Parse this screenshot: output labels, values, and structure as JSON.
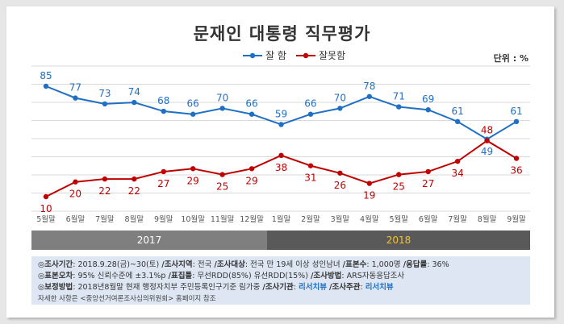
{
  "chart_data": {
    "type": "line",
    "title": "문재인 대통령 직무평가",
    "unit": "단위 : %",
    "categories": [
      "5월말",
      "6월말",
      "7월말",
      "8월말",
      "9월말",
      "10월말",
      "11월말",
      "12월말",
      "1월말",
      "2월말",
      "3월말",
      "4월말",
      "5월말",
      "6월말",
      "7월말",
      "8월말",
      "9월말"
    ],
    "series": [
      {
        "name": "잘 함",
        "color": "#1f6fc5",
        "values": [
          85,
          77,
          73,
          74,
          68,
          66,
          70,
          66,
          59,
          66,
          70,
          78,
          71,
          69,
          61,
          49,
          61
        ]
      },
      {
        "name": "잘못함",
        "color": "#c00000",
        "values": [
          10,
          20,
          22,
          22,
          27,
          29,
          25,
          29,
          38,
          31,
          26,
          19,
          25,
          27,
          34,
          48,
          36
        ]
      }
    ],
    "years": [
      {
        "label": "2017",
        "color": "#7f7f7f",
        "text_color": "#ffffff"
      },
      {
        "label": "2018",
        "color": "#595959",
        "text_color": "#f5c12e"
      }
    ],
    "ylim": [
      0,
      100
    ],
    "grid": true
  },
  "notes": {
    "line1": {
      "k1": "◎조사기간",
      "v1": ": 2018.9.28(금)~30(토)",
      "k2": "/조사지역",
      "v2": ": 전국",
      "k3": "/조사대상",
      "v3": ": 전국 만 19세 이상 성인남녀",
      "k4": "/표본수",
      "v4": ": 1,000명",
      "k5": "/응답률",
      "v5": ": 36%"
    },
    "line2": {
      "k1": "◎표본오차",
      "v1": ": 95% 신뢰수준에 ±3.1%p",
      "k2": "/표집틀",
      "v2": ": 무선RDD(85%) 유선RDD(15%)",
      "k3": "/조사방법",
      "v3": ": ARS자동응답조사"
    },
    "line3": {
      "k1": "◎보정방법",
      "v1": ": 2018년8월말 현재 행정자치부 주민등록인구기준 림가중",
      "k2": "/조사기관",
      "v2": ":",
      "h1": "리서치뷰",
      "k3": "/조사주관",
      "v3": ":",
      "h2": "리서치뷰"
    },
    "line4": "자세한 사항은 <중앙선거여론조사심의위원회> 홈페이지 참조"
  }
}
